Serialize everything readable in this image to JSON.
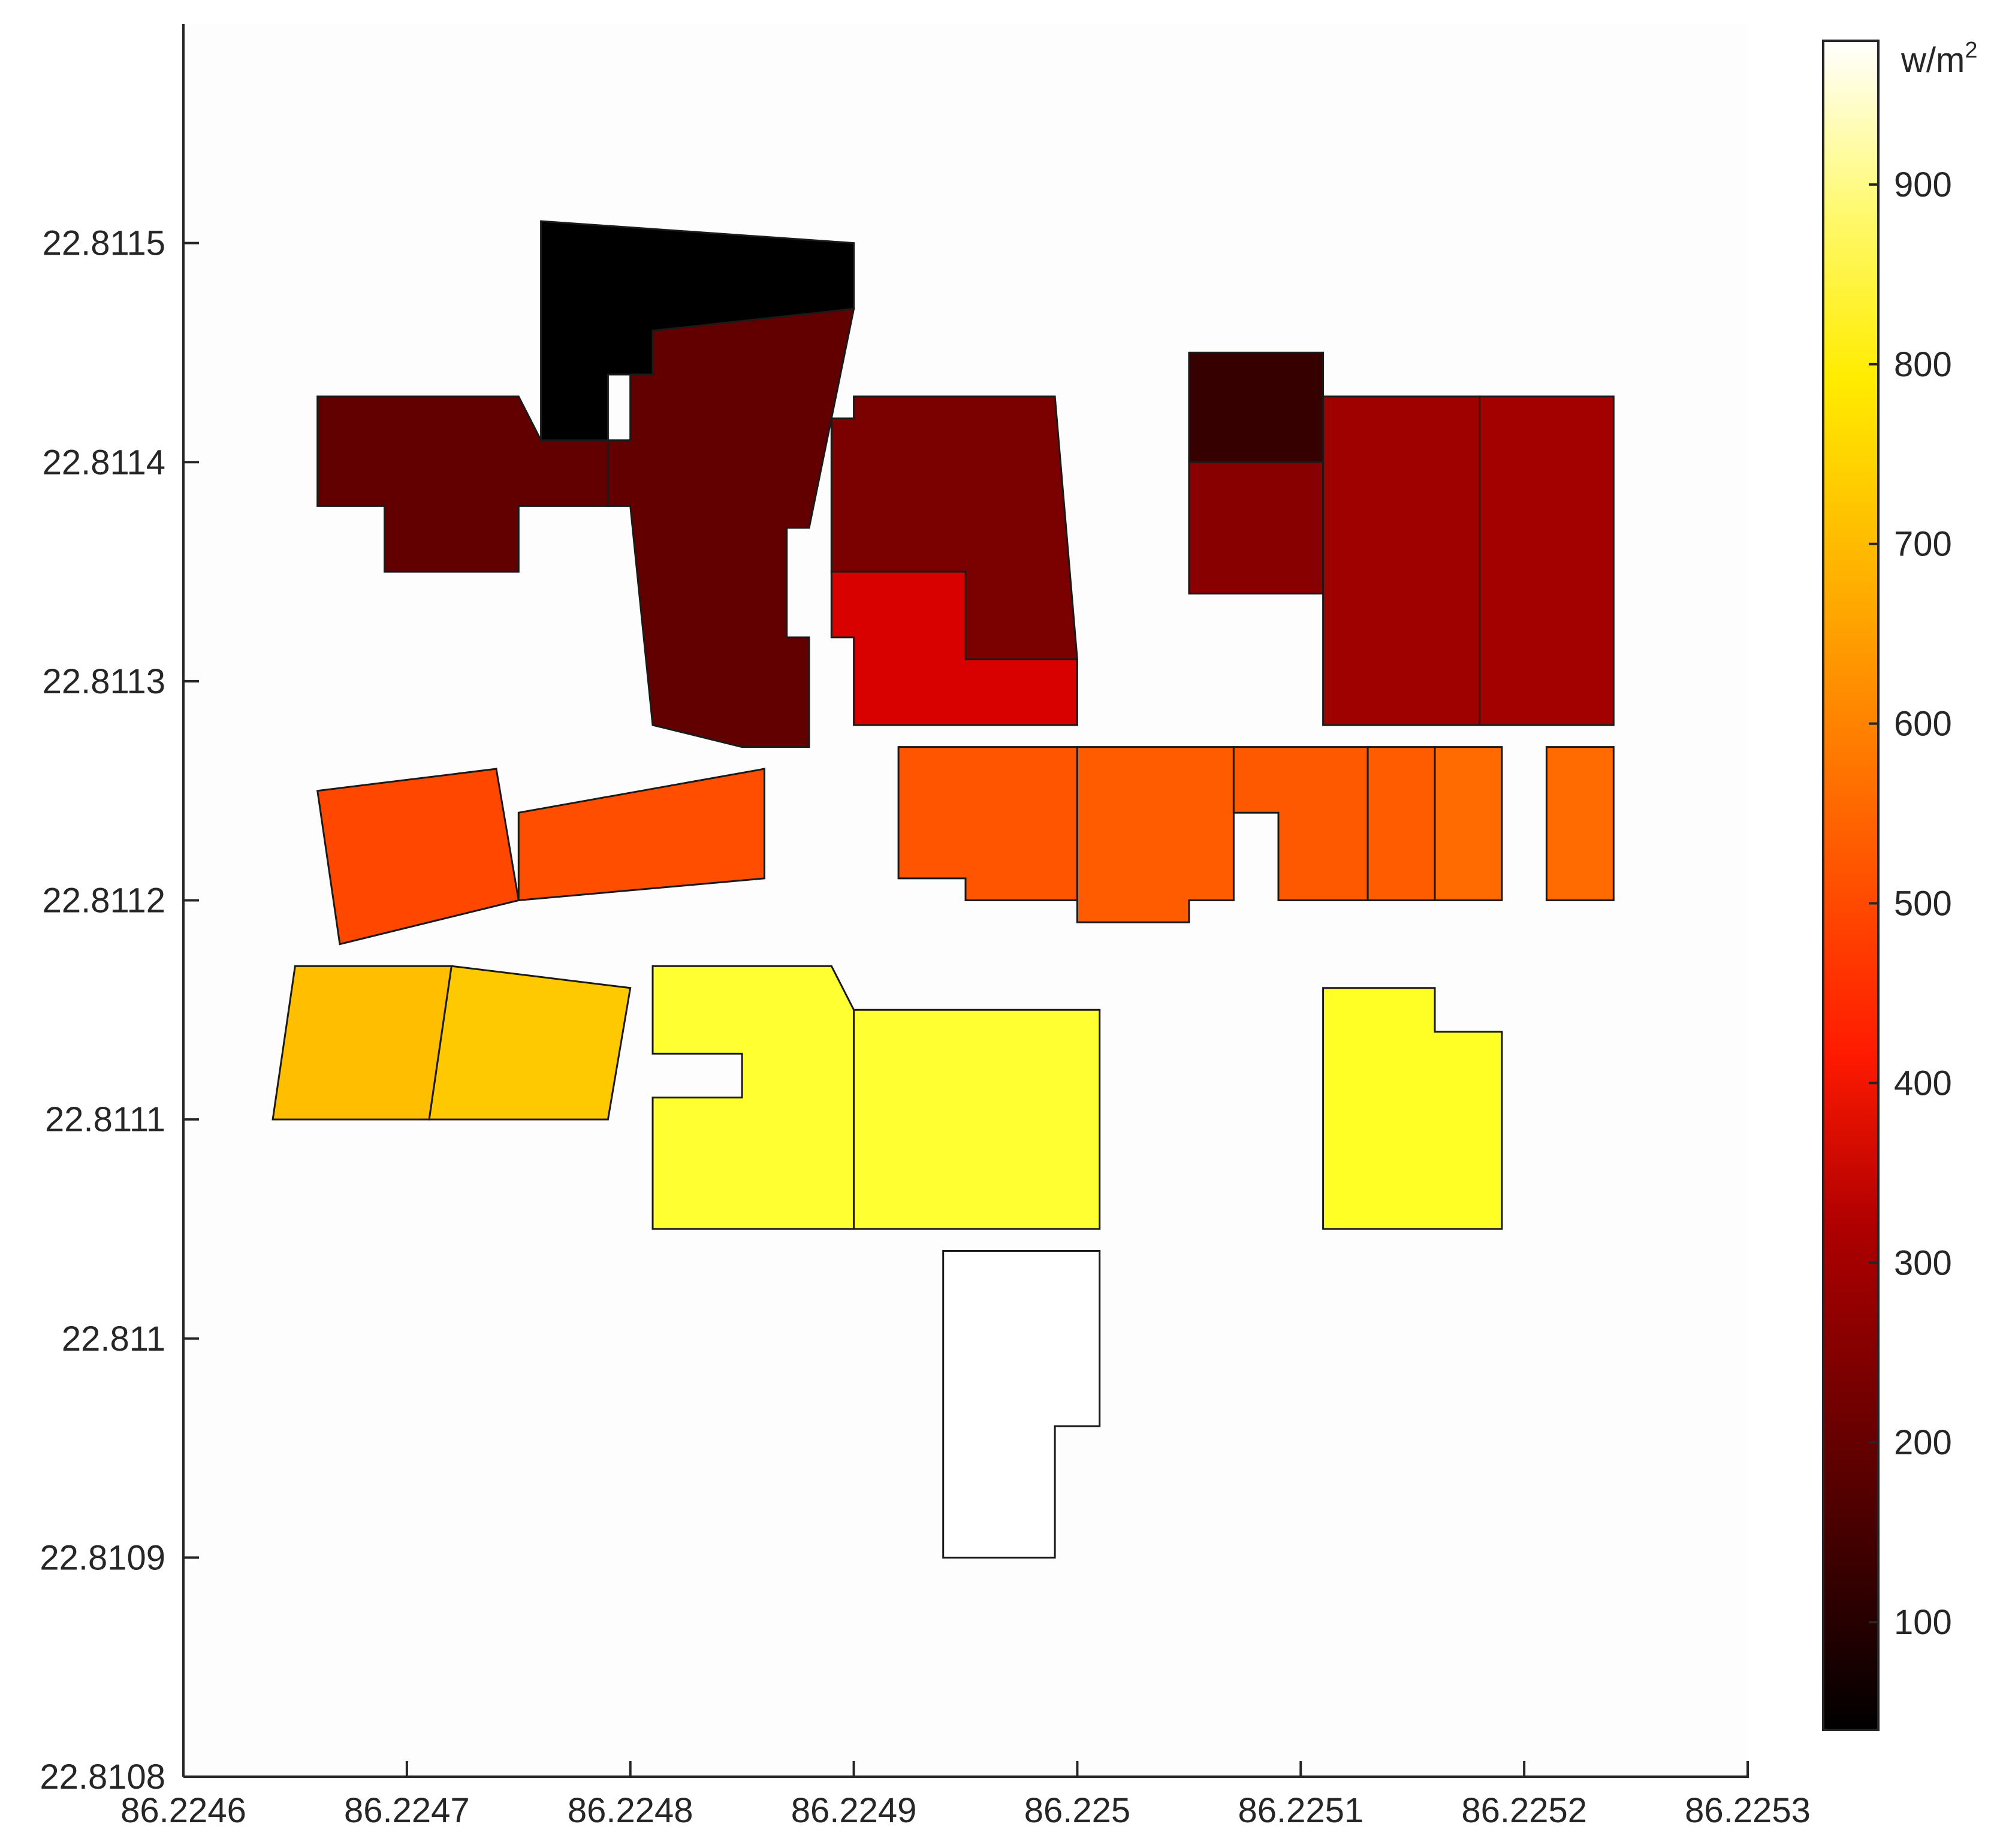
{
  "chart_data": {
    "type": "choropleth",
    "x_ticks": [
      "86.2246",
      "86.2247",
      "86.2248",
      "86.2249",
      "86.225",
      "86.2251",
      "86.2252",
      "86.2253"
    ],
    "y_ticks": [
      "22.8108",
      "22.8109",
      "22.811",
      "22.8111",
      "22.8112",
      "22.8113",
      "22.8114",
      "22.8115"
    ],
    "xlim": [
      86.2246,
      86.2253
    ],
    "ylim": [
      22.8108,
      22.8116
    ],
    "colorbar": {
      "unit_base": "w/m",
      "unit_sup": "2",
      "range": [
        40,
        980
      ],
      "ticks": [
        "100",
        "200",
        "300",
        "400",
        "500",
        "600",
        "700",
        "800",
        "900"
      ],
      "colormap": "hot",
      "position": "right"
    },
    "buildings": [
      {
        "id": "b1",
        "value": 175,
        "points": [
          [
            86.22466,
            22.81143
          ],
          [
            86.22472,
            22.81143
          ],
          [
            86.22472,
            22.81143
          ],
          [
            86.22475,
            22.81143
          ],
          [
            86.22476,
            22.81141
          ],
          [
            86.22479,
            22.81141
          ],
          [
            86.22479,
            22.81138
          ],
          [
            86.22475,
            22.81138
          ],
          [
            86.22475,
            22.81135
          ],
          [
            86.22469,
            22.81135
          ],
          [
            86.22469,
            22.81138
          ],
          [
            86.22466,
            22.81138
          ]
        ]
      },
      {
        "id": "b2",
        "value": 40,
        "points": [
          [
            86.22476,
            22.81151
          ],
          [
            86.2249,
            22.8115
          ],
          [
            86.2249,
            22.81147
          ],
          [
            86.22481,
            22.81146
          ],
          [
            86.22481,
            22.81144
          ],
          [
            86.22479,
            22.81144
          ],
          [
            86.22479,
            22.81141
          ],
          [
            86.22476,
            22.81141
          ]
        ]
      },
      {
        "id": "b3",
        "value": 175,
        "points": [
          [
            86.22481,
            22.81146
          ],
          [
            86.2249,
            22.81147
          ],
          [
            86.22488,
            22.81137
          ],
          [
            86.22487,
            22.81137
          ],
          [
            86.22487,
            22.81132
          ],
          [
            86.22488,
            22.81132
          ],
          [
            86.22488,
            22.81127
          ],
          [
            86.22485,
            22.81127
          ],
          [
            86.22485,
            22.81127
          ],
          [
            86.22481,
            22.81128
          ],
          [
            86.2248,
            22.81138
          ],
          [
            86.22479,
            22.81138
          ],
          [
            86.22479,
            22.81141
          ],
          [
            86.2248,
            22.81141
          ],
          [
            86.2248,
            22.81144
          ],
          [
            86.22481,
            22.81144
          ]
        ]
      },
      {
        "id": "b4",
        "value": 210,
        "points": [
          [
            86.2249,
            22.81143
          ],
          [
            86.22499,
            22.81143
          ],
          [
            86.225,
            22.81131
          ],
          [
            86.22495,
            22.81131
          ],
          [
            86.22495,
            22.81135
          ],
          [
            86.22489,
            22.81135
          ],
          [
            86.22489,
            22.81142
          ],
          [
            86.2249,
            22.81142
          ]
        ]
      },
      {
        "id": "b5",
        "value": 340,
        "points": [
          [
            86.22489,
            22.81135
          ],
          [
            86.22495,
            22.81135
          ],
          [
            86.22495,
            22.81131
          ],
          [
            86.225,
            22.81131
          ],
          [
            86.225,
            22.81128
          ],
          [
            86.2249,
            22.81128
          ],
          [
            86.2249,
            22.81132
          ],
          [
            86.22489,
            22.81132
          ]
        ]
      },
      {
        "id": "b6",
        "value": 115,
        "points": [
          [
            86.22505,
            22.81145
          ],
          [
            86.22511,
            22.81145
          ],
          [
            86.22511,
            22.8114
          ],
          [
            86.22508,
            22.8114
          ],
          [
            86.22508,
            22.8114
          ],
          [
            86.22505,
            22.8114
          ]
        ]
      },
      {
        "id": "b7",
        "value": 230,
        "points": [
          [
            86.22505,
            22.8114
          ],
          [
            86.22508,
            22.8114
          ],
          [
            86.22508,
            22.8114
          ],
          [
            86.22511,
            22.8114
          ],
          [
            86.22511,
            22.81134
          ],
          [
            86.22505,
            22.81134
          ]
        ]
      },
      {
        "id": "b8",
        "value": 260,
        "points": [
          [
            86.22511,
            22.81143
          ],
          [
            86.22518,
            22.81143
          ],
          [
            86.22518,
            22.81128
          ],
          [
            86.22511,
            22.81128
          ]
        ]
      },
      {
        "id": "b9",
        "value": 265,
        "points": [
          [
            86.22518,
            22.81143
          ],
          [
            86.22524,
            22.81143
          ],
          [
            86.22524,
            22.81128
          ],
          [
            86.22518,
            22.81128
          ]
        ]
      },
      {
        "id": "b10",
        "value": 490,
        "points": [
          [
            86.22466,
            22.81125
          ],
          [
            86.22474,
            22.81126
          ],
          [
            86.22475,
            22.8112
          ],
          [
            86.22467,
            22.81118
          ]
        ]
      },
      {
        "id": "b11",
        "value": 500,
        "points": [
          [
            86.22475,
            22.81124
          ],
          [
            86.22486,
            22.81126
          ],
          [
            86.22486,
            22.81121
          ],
          [
            86.22475,
            22.8112
          ]
        ]
      },
      {
        "id": "b12",
        "value": 510,
        "points": [
          [
            86.22492,
            22.81127
          ],
          [
            86.225,
            22.81127
          ],
          [
            86.225,
            22.8112
          ],
          [
            86.22495,
            22.8112
          ],
          [
            86.22495,
            22.81121
          ],
          [
            86.22492,
            22.81121
          ]
        ]
      },
      {
        "id": "b13",
        "value": 520,
        "points": [
          [
            86.225,
            22.81127
          ],
          [
            86.22507,
            22.81127
          ],
          [
            86.22507,
            22.81124
          ],
          [
            86.22507,
            22.8112
          ],
          [
            86.22505,
            22.8112
          ],
          [
            86.22505,
            22.81119
          ],
          [
            86.225,
            22.81119
          ]
        ]
      },
      {
        "id": "b14",
        "value": 515,
        "points": [
          [
            86.22507,
            22.81127
          ],
          [
            86.22513,
            22.81127
          ],
          [
            86.22513,
            22.8112
          ],
          [
            86.22509,
            22.8112
          ],
          [
            86.22509,
            22.81124
          ],
          [
            86.22507,
            22.81124
          ]
        ]
      },
      {
        "id": "b15",
        "value": 520,
        "points": [
          [
            86.22513,
            22.81127
          ],
          [
            86.22516,
            22.81127
          ],
          [
            86.22516,
            22.8112
          ],
          [
            86.22513,
            22.8112
          ]
        ]
      },
      {
        "id": "b16",
        "value": 540,
        "points": [
          [
            86.22516,
            22.81127
          ],
          [
            86.22519,
            22.81127
          ],
          [
            86.22519,
            22.8112
          ],
          [
            86.22516,
            22.8112
          ]
        ]
      },
      {
        "id": "b17",
        "value": 540,
        "points": [
          [
            86.22521,
            22.81127
          ],
          [
            86.22524,
            22.81127
          ],
          [
            86.22524,
            22.8112
          ],
          [
            86.22521,
            22.8112
          ]
        ]
      },
      {
        "id": "b18",
        "value": 655,
        "points": [
          [
            86.22465,
            22.81117
          ],
          [
            86.22472,
            22.81117
          ],
          [
            86.22471,
            22.8111
          ],
          [
            86.22464,
            22.8111
          ]
        ]
      },
      {
        "id": "b19",
        "value": 670,
        "points": [
          [
            86.22472,
            22.81117
          ],
          [
            86.2248,
            22.81116
          ],
          [
            86.22479,
            22.8111
          ],
          [
            86.22471,
            22.8111
          ]
        ]
      },
      {
        "id": "b20",
        "value": 790,
        "points": [
          [
            86.22481,
            22.81117
          ],
          [
            86.22489,
            22.81117
          ],
          [
            86.2249,
            22.81115
          ],
          [
            86.2249,
            22.81105
          ],
          [
            86.22481,
            22.81105
          ],
          [
            86.22481,
            22.81111
          ],
          [
            86.22485,
            22.81111
          ],
          [
            86.22485,
            22.81113
          ],
          [
            86.22481,
            22.81113
          ]
        ]
      },
      {
        "id": "b21",
        "value": 790,
        "points": [
          [
            86.2249,
            22.81115
          ],
          [
            86.22501,
            22.81115
          ],
          [
            86.22501,
            22.81105
          ],
          [
            86.2249,
            22.81105
          ]
        ]
      },
      {
        "id": "b22",
        "value": 780,
        "points": [
          [
            86.22511,
            22.81116
          ],
          [
            86.22516,
            22.81116
          ],
          [
            86.22516,
            22.81114
          ],
          [
            86.22519,
            22.81114
          ],
          [
            86.22519,
            22.81105
          ],
          [
            86.22511,
            22.81105
          ]
        ]
      },
      {
        "id": "b23",
        "value": 980,
        "points": [
          [
            86.22494,
            22.81104
          ],
          [
            86.22501,
            22.81104
          ],
          [
            86.22501,
            22.81096
          ],
          [
            86.22499,
            22.81096
          ],
          [
            86.22499,
            22.8109
          ],
          [
            86.22494,
            22.8109
          ]
        ]
      }
    ]
  }
}
